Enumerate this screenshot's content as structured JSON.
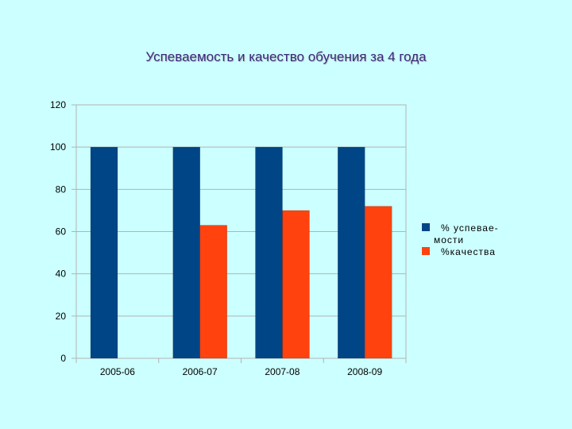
{
  "chart_data": {
    "type": "bar",
    "title": "Успеваемость и качество обучения за 4 года",
    "categories": [
      "2005-06",
      "2006-07",
      "2007-08",
      "2008-09"
    ],
    "series": [
      {
        "name": "% успевае-мости",
        "legend_lines": [
          "% успевае-",
          "мости"
        ],
        "values": [
          100,
          100,
          100,
          100
        ],
        "color": "#004586"
      },
      {
        "name": "%качества",
        "legend_lines": [
          "%качества"
        ],
        "values": [
          0,
          63,
          70,
          72
        ],
        "color": "#ff420e"
      }
    ],
    "ylim": [
      0,
      120
    ],
    "yticks": [
      "0",
      "20",
      "40",
      "60",
      "80",
      "100",
      "120"
    ],
    "grid": true,
    "legend": "right",
    "background": "#ccffff"
  }
}
